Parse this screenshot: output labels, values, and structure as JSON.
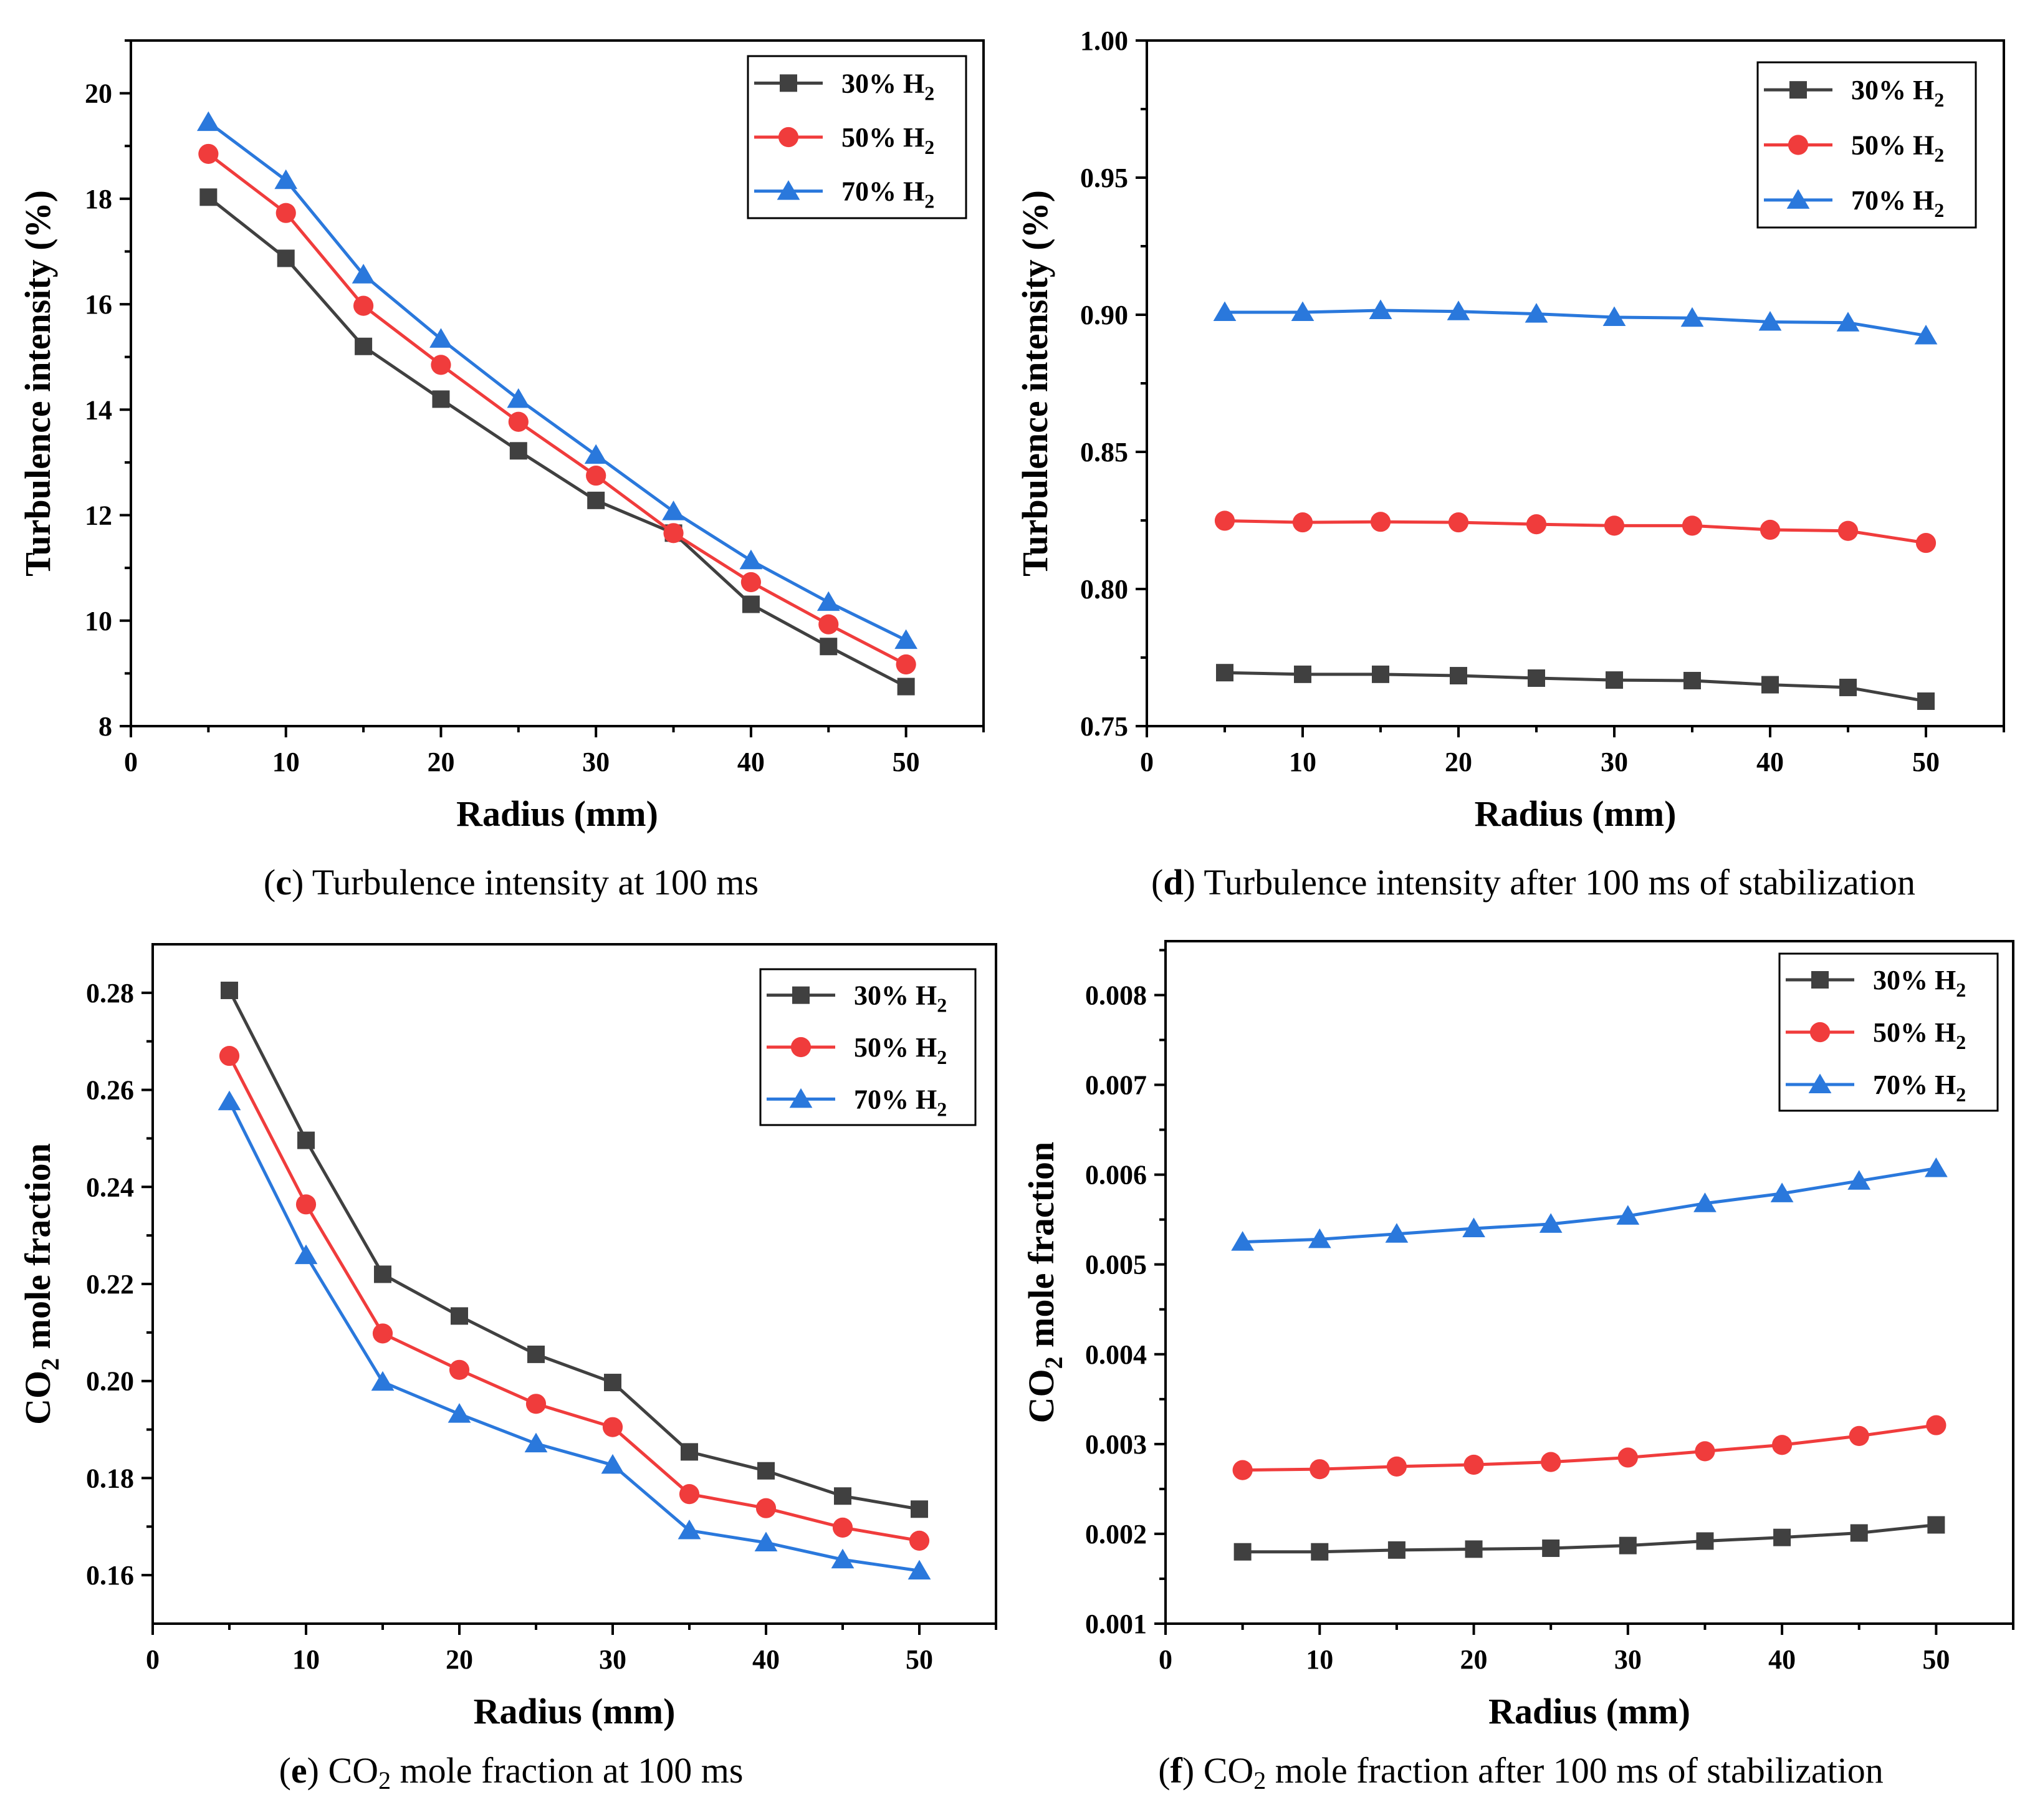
{
  "figure": {
    "panels": [
      {
        "letter": "c",
        "caption": "Turbulence intensity at 100 ms"
      },
      {
        "letter": "d",
        "caption": "Turbulence intensity after 100 ms of stabilization"
      },
      {
        "letter": "e",
        "caption_pre": "CO",
        "caption_sub": "2",
        "caption_post": " mole fraction at 100 ms"
      },
      {
        "letter": "f",
        "caption_pre": "CO",
        "caption_sub": "2",
        "caption_post": " mole fraction after 100 ms of stabilization"
      }
    ]
  },
  "colors": {
    "h2_30": "#404040",
    "h2_50": "#f03c3c",
    "h2_70": "#2a78dc"
  },
  "chart_data": [
    {
      "type": "line",
      "title": "Turbulence intensity at 100 ms",
      "xlabel": "Radius (mm)",
      "ylabel": "Turbulence intensity (%)",
      "xlim": [
        0,
        55
      ],
      "ylim": [
        8,
        21
      ],
      "xticks": [
        "0",
        "10",
        "20",
        "30",
        "40",
        "50"
      ],
      "yticks": [
        "8",
        "10",
        "12",
        "14",
        "16",
        "18",
        "20"
      ],
      "x": [
        5,
        10,
        15,
        20,
        25,
        30,
        35,
        40,
        45,
        50
      ],
      "legend_position": "top-right",
      "series": [
        {
          "name": "30% H",
          "sub": "2",
          "marker": "square",
          "values": [
            18.03,
            16.87,
            15.2,
            14.2,
            13.22,
            12.28,
            11.66,
            10.31,
            9.51,
            8.75
          ]
        },
        {
          "name": "50% H",
          "sub": "2",
          "marker": "circle",
          "values": [
            18.85,
            17.73,
            15.97,
            14.85,
            13.77,
            12.75,
            11.66,
            10.73,
            9.93,
            9.17
          ]
        },
        {
          "name": "70% H",
          "sub": "2",
          "marker": "triangle",
          "values": [
            19.45,
            18.35,
            16.56,
            15.34,
            14.2,
            13.14,
            12.07,
            11.14,
            10.35,
            9.63
          ]
        }
      ]
    },
    {
      "type": "line",
      "title": "Turbulence intensity after 100 ms of stabilization",
      "xlabel": "Radius (mm)",
      "ylabel": "Turbulence intensity (%)",
      "xlim": [
        0,
        55
      ],
      "ylim": [
        0.75,
        1.0
      ],
      "xticks": [
        "0",
        "10",
        "20",
        "30",
        "40",
        "50"
      ],
      "yticks": [
        "0.75",
        "0.80",
        "0.85",
        "0.90",
        "0.95",
        "1.00"
      ],
      "x": [
        5,
        10,
        15,
        20,
        25,
        30,
        35,
        40,
        45,
        50
      ],
      "legend_position": "top-right",
      "series": [
        {
          "name": "30% H",
          "sub": "2",
          "marker": "square",
          "values": [
            0.7695,
            0.7689,
            0.7689,
            0.7684,
            0.7675,
            0.7668,
            0.7666,
            0.7651,
            0.7641,
            0.7591
          ]
        },
        {
          "name": "50% H",
          "sub": "2",
          "marker": "circle",
          "values": [
            0.8249,
            0.8243,
            0.8245,
            0.8243,
            0.8236,
            0.8231,
            0.8231,
            0.8216,
            0.8212,
            0.8168
          ]
        },
        {
          "name": "70% H",
          "sub": "2",
          "marker": "triangle",
          "values": [
            0.9009,
            0.9009,
            0.9016,
            0.9012,
            0.9003,
            0.8991,
            0.8988,
            0.8974,
            0.8971,
            0.8924
          ]
        }
      ]
    },
    {
      "type": "line",
      "title": "CO2 mole fraction at 100 ms",
      "xlabel": "Radius (mm)",
      "ylabel_pre": "CO",
      "ylabel_sub": "2",
      "ylabel_post": " mole fraction",
      "xlim": [
        0,
        55
      ],
      "ylim": [
        0.15,
        0.29
      ],
      "xticks": [
        "0",
        "10",
        "20",
        "30",
        "40",
        "50"
      ],
      "yticks": [
        "0.16",
        "0.18",
        "0.20",
        "0.22",
        "0.24",
        "0.26",
        "0.28"
      ],
      "x": [
        5,
        10,
        15,
        20,
        25,
        30,
        35,
        40,
        45,
        50
      ],
      "legend_position": "top-right",
      "series": [
        {
          "name": "30% H",
          "sub": "2",
          "marker": "square",
          "values": [
            0.2805,
            0.2496,
            0.222,
            0.2134,
            0.2055,
            0.1997,
            0.1854,
            0.1815,
            0.1763,
            0.1736
          ]
        },
        {
          "name": "50% H",
          "sub": "2",
          "marker": "circle",
          "values": [
            0.267,
            0.2364,
            0.2098,
            0.2023,
            0.1953,
            0.1905,
            0.1767,
            0.1738,
            0.1698,
            0.1671
          ]
        },
        {
          "name": "70% H",
          "sub": "2",
          "marker": "triangle",
          "values": [
            0.2576,
            0.2259,
            0.1998,
            0.1932,
            0.1871,
            0.1827,
            0.1692,
            0.1667,
            0.1632,
            0.1609
          ]
        }
      ]
    },
    {
      "type": "line",
      "title": "CO2 mole fraction after 100 ms of stabilization",
      "xlabel": "Radius (mm)",
      "ylabel_pre": "CO",
      "ylabel_sub": "2",
      "ylabel_post": " mole fraction",
      "xlim": [
        0,
        55
      ],
      "ylim": [
        0.001,
        0.0086
      ],
      "xticks": [
        "0",
        "10",
        "20",
        "30",
        "40",
        "50"
      ],
      "yticks": [
        "0.001",
        "0.002",
        "0.003",
        "0.004",
        "0.005",
        "0.006",
        "0.007",
        "0.008"
      ],
      "x": [
        5,
        10,
        15,
        20,
        25,
        30,
        35,
        40,
        45,
        50
      ],
      "legend_position": "top-right",
      "series": [
        {
          "name": "30% H",
          "sub": "2",
          "marker": "square",
          "values": [
            0.0018,
            0.0018,
            0.00182,
            0.00183,
            0.00184,
            0.00187,
            0.00192,
            0.00196,
            0.00201,
            0.0021
          ]
        },
        {
          "name": "50% H",
          "sub": "2",
          "marker": "circle",
          "values": [
            0.00271,
            0.00272,
            0.00275,
            0.00277,
            0.0028,
            0.00285,
            0.00292,
            0.00299,
            0.00309,
            0.00321
          ]
        },
        {
          "name": "70% H",
          "sub": "2",
          "marker": "triangle",
          "values": [
            0.00525,
            0.00528,
            0.00534,
            0.0054,
            0.00545,
            0.00554,
            0.00568,
            0.00579,
            0.00593,
            0.00607
          ]
        }
      ]
    }
  ]
}
